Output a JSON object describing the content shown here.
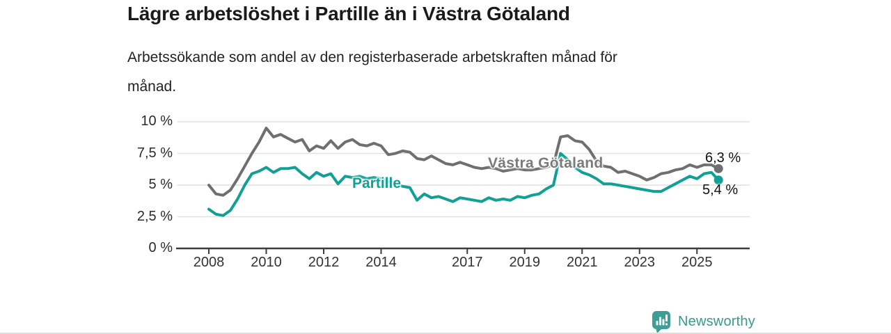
{
  "page": {
    "title": "Lägre arbetslöshet i Partille än i Västra Götaland",
    "subtitle": "Arbetssökande som andel av den registerbaserade arbetskraften månad för månad."
  },
  "chart_data": {
    "type": "line",
    "title": "Lägre arbetslöshet i Partille än i Västra Götaland",
    "subtitle": "Arbetssökande som andel av den registerbaserade arbetskraften månad för månad.",
    "unit": "%",
    "grid": "horizontal",
    "legend_position": "inline-labels",
    "x_start": 2008.0,
    "x_step": 0.25,
    "x_end": 2025.75,
    "xlim": [
      2006.9,
      2026.8
    ],
    "ylim": [
      0,
      10
    ],
    "y_tick_values": [
      0,
      2.5,
      5,
      7.5,
      10
    ],
    "y_tick_labels": [
      "0 %",
      "2,5 %",
      "5 %",
      "7,5 %",
      "10 %"
    ],
    "x_tick_years": [
      2008,
      2010,
      2012,
      2014,
      2017,
      2019,
      2021,
      2023,
      2025
    ],
    "x_tick_labels": [
      "2008",
      "2010",
      "2012",
      "2014",
      "2017",
      "2019",
      "2021",
      "2023",
      "2025"
    ],
    "series": [
      {
        "name": "Västra Götaland",
        "color": "#6f6f6f",
        "end_label": "6,3 %",
        "end_value": 6.3,
        "values": [
          5.0,
          4.3,
          4.2,
          4.6,
          5.5,
          6.5,
          7.5,
          8.4,
          9.5,
          8.8,
          9.0,
          8.7,
          8.4,
          8.6,
          7.7,
          8.1,
          7.9,
          8.5,
          7.9,
          8.4,
          8.6,
          8.2,
          8.1,
          8.3,
          8.1,
          7.4,
          7.5,
          7.7,
          7.6,
          7.1,
          7.0,
          7.3,
          7.0,
          6.7,
          6.6,
          6.8,
          6.6,
          6.4,
          6.3,
          6.4,
          6.3,
          6.1,
          6.2,
          6.3,
          6.2,
          6.2,
          6.3,
          6.4,
          6.6,
          8.8,
          8.9,
          8.5,
          8.4,
          7.8,
          6.9,
          6.5,
          6.4,
          6.0,
          6.1,
          5.9,
          5.7,
          5.4,
          5.6,
          5.9,
          6.0,
          6.2,
          6.3,
          6.6,
          6.4,
          6.6,
          6.6,
          6.3
        ]
      },
      {
        "name": "Partille",
        "color": "#10a095",
        "end_label": "5,4 %",
        "end_value": 5.4,
        "values": [
          3.1,
          2.7,
          2.6,
          3.0,
          3.9,
          5.0,
          5.9,
          6.1,
          6.4,
          6.0,
          6.3,
          6.3,
          6.4,
          5.9,
          5.5,
          6.0,
          5.7,
          5.9,
          5.1,
          5.7,
          5.6,
          5.7,
          5.5,
          5.6,
          5.5,
          5.3,
          5.1,
          4.9,
          4.8,
          3.8,
          4.3,
          4.0,
          4.1,
          3.9,
          3.7,
          4.0,
          3.9,
          3.8,
          3.7,
          4.0,
          3.8,
          3.9,
          3.8,
          4.1,
          4.0,
          4.2,
          4.3,
          4.7,
          5.0,
          7.5,
          7.0,
          6.4,
          6.0,
          5.8,
          5.5,
          5.1,
          5.1,
          5.0,
          4.9,
          4.8,
          4.7,
          4.6,
          4.5,
          4.5,
          4.8,
          5.1,
          5.4,
          5.7,
          5.5,
          5.9,
          6.0,
          5.4
        ]
      }
    ],
    "colors": {
      "grid": "#e1e1e1",
      "axis": "#3d3d3d",
      "text": "#333333"
    }
  },
  "branding": {
    "name": "Newsworthy",
    "color": "#37988f",
    "logo_icon": "bar-chart-speech-bubble"
  }
}
